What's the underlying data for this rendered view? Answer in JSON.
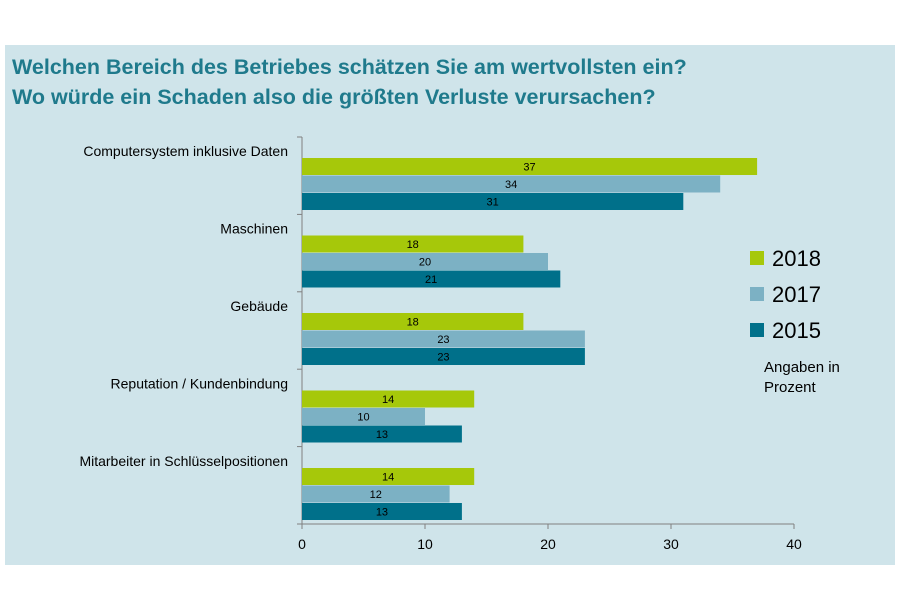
{
  "chart_data": {
    "type": "bar",
    "orientation": "horizontal",
    "title": [
      "Welchen Bereich des Betriebes schätzen Sie am wertvollsten ein?",
      "Wo würde ein Schaden also die größten Verluste verursachen?"
    ],
    "categories": [
      "Computersystem inklusive Daten",
      "Maschinen",
      "Gebäude",
      "Reputation / Kundenbindung",
      "Mitarbeiter in Schlüsselpositionen"
    ],
    "series": [
      {
        "name": "2018",
        "color": "#a6c80a",
        "values": [
          37,
          18,
          18,
          14,
          14
        ]
      },
      {
        "name": "2017",
        "color": "#7cb1c4",
        "values": [
          34,
          20,
          23,
          10,
          12
        ]
      },
      {
        "name": "2015",
        "color": "#00708a",
        "values": [
          31,
          21,
          23,
          13,
          13
        ]
      }
    ],
    "xlim": [
      0,
      40
    ],
    "xticks": [
      0,
      10,
      20,
      30,
      40
    ],
    "legend_position": "right",
    "note": [
      "Angaben in",
      "Prozent"
    ]
  }
}
